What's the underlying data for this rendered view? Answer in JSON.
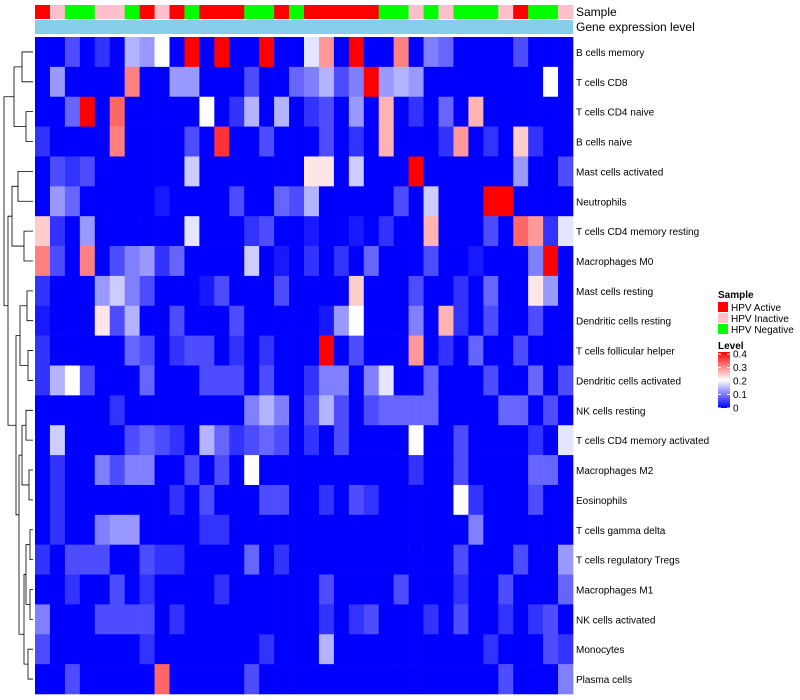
{
  "chart_data": {
    "type": "heatmap",
    "title": "",
    "annotation_rows": {
      "sample_label": "Sample",
      "gene_label": "Gene expression level"
    },
    "sample_groups": [
      "A",
      "I",
      "N",
      "N",
      "I",
      "I",
      "N",
      "A",
      "I",
      "A",
      "N",
      "A",
      "A",
      "A",
      "N",
      "N",
      "A",
      "N",
      "A",
      "A",
      "A",
      "A",
      "A",
      "N",
      "N",
      "I",
      "N",
      "I",
      "N",
      "N",
      "N",
      "I",
      "A",
      "N",
      "N",
      "I"
    ],
    "row_labels": [
      "B cells memory",
      "T cells CD8",
      "T cells CD4 naive",
      "B cells naive",
      "Mast cells activated",
      "Neutrophils",
      "T cells CD4 memory resting",
      "Macrophages M0",
      "Mast cells resting",
      "Dendritic cells resting",
      "T cells follicular helper",
      "Dendritic cells activated",
      "NK cells resting",
      "T cells CD4 memory activated",
      "Macrophages M2",
      "Eosinophils",
      "T cells gamma delta",
      "T cells regulatory  Tregs",
      "Macrophages M1",
      "NK cells activated",
      "Monocytes",
      "Plasma cells"
    ],
    "values": [
      [
        0.0,
        0.0,
        0.06,
        0.0,
        0.04,
        0.0,
        0.14,
        0.12,
        0.2,
        0.0,
        0.4,
        0.0,
        0.4,
        0.0,
        0.0,
        0.4,
        0.0,
        0.0,
        0.18,
        0.28,
        0.0,
        0.4,
        0.0,
        0.0,
        0.3,
        0.0,
        0.1,
        0.08,
        0.0,
        0.0,
        0.0,
        0.0,
        0.06,
        0.0,
        0.0,
        0.0
      ],
      [
        0.0,
        0.12,
        0.0,
        0.0,
        0.0,
        0.0,
        0.3,
        0.0,
        0.0,
        0.12,
        0.12,
        0.0,
        0.0,
        0.0,
        0.06,
        0.0,
        0.0,
        0.08,
        0.1,
        0.14,
        0.06,
        0.1,
        0.4,
        0.12,
        0.14,
        0.12,
        0.0,
        0.0,
        0.0,
        0.0,
        0.0,
        0.0,
        0.0,
        0.0,
        0.2,
        0.0
      ],
      [
        0.0,
        0.0,
        0.08,
        0.4,
        0.0,
        0.32,
        0.0,
        0.0,
        0.0,
        0.0,
        0.0,
        0.2,
        0.0,
        0.04,
        0.14,
        0.0,
        0.14,
        0.0,
        0.04,
        0.06,
        0.0,
        0.12,
        0.0,
        0.26,
        0.0,
        0.04,
        0.0,
        0.08,
        0.0,
        0.26,
        0.0,
        0.0,
        0.0,
        0.0,
        0.0,
        0.0
      ],
      [
        0.04,
        0.0,
        0.0,
        0.0,
        0.0,
        0.3,
        0.0,
        0.0,
        0.0,
        0.0,
        0.06,
        0.0,
        0.36,
        0.0,
        0.0,
        0.06,
        0.0,
        0.0,
        0.0,
        0.06,
        0.0,
        0.04,
        0.0,
        0.26,
        0.0,
        0.0,
        0.0,
        0.04,
        0.28,
        0.0,
        0.04,
        0.0,
        0.24,
        0.04,
        0.0,
        0.0
      ],
      [
        0.0,
        0.06,
        0.04,
        0.06,
        0.0,
        0.0,
        0.0,
        0.0,
        0.0,
        0.0,
        0.16,
        0.0,
        0.0,
        0.0,
        0.0,
        0.0,
        0.0,
        0.0,
        0.22,
        0.22,
        0.0,
        0.16,
        0.0,
        0.0,
        0.0,
        0.4,
        0.0,
        0.0,
        0.0,
        0.0,
        0.0,
        0.0,
        0.12,
        0.0,
        0.0,
        0.06
      ],
      [
        0.0,
        0.12,
        0.08,
        0.0,
        0.0,
        0.0,
        0.0,
        0.0,
        0.02,
        0.0,
        0.0,
        0.0,
        0.0,
        0.06,
        0.0,
        0.0,
        0.08,
        0.06,
        0.14,
        0.0,
        0.0,
        0.0,
        0.0,
        0.0,
        0.06,
        0.0,
        0.16,
        0.0,
        0.0,
        0.0,
        0.4,
        0.4,
        0.0,
        0.0,
        0.0,
        0.0
      ],
      [
        0.24,
        0.04,
        0.0,
        0.12,
        0.0,
        0.0,
        0.0,
        0.0,
        0.0,
        0.0,
        0.18,
        0.0,
        0.0,
        0.0,
        0.04,
        0.06,
        0.0,
        0.0,
        0.02,
        0.0,
        0.0,
        0.02,
        0.0,
        0.04,
        0.0,
        0.0,
        0.26,
        0.0,
        0.0,
        0.0,
        0.06,
        0.0,
        0.32,
        0.28,
        0.04,
        0.18
      ],
      [
        0.3,
        0.06,
        0.0,
        0.3,
        0.0,
        0.06,
        0.1,
        0.12,
        0.04,
        0.08,
        0.0,
        0.0,
        0.0,
        0.0,
        0.16,
        0.0,
        0.02,
        0.0,
        0.04,
        0.0,
        0.04,
        0.0,
        0.08,
        0.0,
        0.0,
        0.0,
        0.06,
        0.0,
        0.0,
        0.02,
        0.0,
        0.0,
        0.0,
        0.1,
        0.4,
        0.0
      ],
      [
        0.04,
        0.0,
        0.0,
        0.0,
        0.12,
        0.16,
        0.1,
        0.06,
        0.0,
        0.0,
        0.0,
        0.02,
        0.06,
        0.0,
        0.0,
        0.0,
        0.06,
        0.0,
        0.0,
        0.0,
        0.0,
        0.24,
        0.0,
        0.0,
        0.0,
        0.06,
        0.0,
        0.0,
        0.04,
        0.0,
        0.08,
        0.0,
        0.0,
        0.22,
        0.12,
        0.0
      ],
      [
        0.02,
        0.0,
        0.0,
        0.0,
        0.22,
        0.06,
        0.14,
        0.0,
        0.0,
        0.06,
        0.0,
        0.0,
        0.0,
        0.06,
        0.0,
        0.0,
        0.0,
        0.0,
        0.0,
        0.02,
        0.12,
        0.2,
        0.0,
        0.0,
        0.0,
        0.1,
        0.0,
        0.26,
        0.04,
        0.0,
        0.06,
        0.0,
        0.0,
        0.06,
        0.0,
        0.0
      ],
      [
        0.04,
        0.0,
        0.0,
        0.0,
        0.0,
        0.0,
        0.08,
        0.06,
        0.0,
        0.04,
        0.06,
        0.06,
        0.0,
        0.04,
        0.0,
        0.04,
        0.0,
        0.0,
        0.0,
        0.4,
        0.0,
        0.06,
        0.0,
        0.0,
        0.0,
        0.28,
        0.0,
        0.04,
        0.0,
        0.08,
        0.0,
        0.0,
        0.06,
        0.0,
        0.0,
        0.0
      ],
      [
        0.04,
        0.14,
        0.2,
        0.06,
        0.0,
        0.0,
        0.0,
        0.08,
        0.0,
        0.0,
        0.0,
        0.06,
        0.06,
        0.06,
        0.0,
        0.06,
        0.0,
        0.0,
        0.04,
        0.1,
        0.1,
        0.0,
        0.1,
        0.18,
        0.0,
        0.0,
        0.08,
        0.0,
        0.0,
        0.0,
        0.06,
        0.0,
        0.0,
        0.08,
        0.0,
        0.06
      ],
      [
        0.0,
        0.0,
        0.0,
        0.0,
        0.0,
        0.04,
        0.0,
        0.0,
        0.0,
        0.0,
        0.0,
        0.0,
        0.0,
        0.0,
        0.1,
        0.14,
        0.1,
        0.0,
        0.06,
        0.14,
        0.06,
        0.0,
        0.06,
        0.08,
        0.08,
        0.08,
        0.08,
        0.0,
        0.0,
        0.0,
        0.0,
        0.08,
        0.08,
        0.0,
        0.06,
        0.0
      ],
      [
        0.0,
        0.16,
        0.0,
        0.0,
        0.0,
        0.0,
        0.06,
        0.08,
        0.06,
        0.04,
        0.0,
        0.14,
        0.08,
        0.04,
        0.06,
        0.08,
        0.06,
        0.0,
        0.04,
        0.0,
        0.06,
        0.0,
        0.0,
        0.0,
        0.0,
        0.2,
        0.0,
        0.0,
        0.06,
        0.0,
        0.0,
        0.0,
        0.0,
        0.04,
        0.0,
        0.18
      ],
      [
        0.0,
        0.04,
        0.0,
        0.0,
        0.1,
        0.06,
        0.1,
        0.1,
        0.0,
        0.0,
        0.06,
        0.0,
        0.06,
        0.0,
        0.2,
        0.0,
        0.0,
        0.0,
        0.0,
        0.0,
        0.0,
        0.0,
        0.0,
        0.0,
        0.0,
        0.04,
        0.0,
        0.0,
        0.06,
        0.0,
        0.0,
        0.0,
        0.0,
        0.08,
        0.08,
        0.0
      ],
      [
        0.0,
        0.04,
        0.0,
        0.0,
        0.0,
        0.0,
        0.0,
        0.0,
        0.0,
        0.04,
        0.0,
        0.06,
        0.0,
        0.0,
        0.0,
        0.06,
        0.06,
        0.0,
        0.0,
        0.04,
        0.0,
        0.06,
        0.04,
        0.0,
        0.0,
        0.0,
        0.0,
        0.0,
        0.2,
        0.04,
        0.0,
        0.0,
        0.0,
        0.06,
        0.0,
        0.0
      ],
      [
        0.0,
        0.04,
        0.0,
        0.0,
        0.1,
        0.12,
        0.12,
        0.0,
        0.0,
        0.0,
        0.0,
        0.04,
        0.04,
        0.0,
        0.0,
        0.0,
        0.0,
        0.0,
        0.0,
        0.0,
        0.0,
        0.0,
        0.0,
        0.0,
        0.0,
        0.0,
        0.0,
        0.0,
        0.0,
        0.1,
        0.0,
        0.0,
        0.0,
        0.0,
        0.0,
        0.0
      ],
      [
        0.04,
        0.0,
        0.06,
        0.06,
        0.06,
        0.0,
        0.0,
        0.06,
        0.04,
        0.04,
        0.0,
        0.0,
        0.0,
        0.0,
        0.08,
        0.0,
        0.04,
        0.0,
        0.0,
        0.0,
        0.0,
        0.0,
        0.0,
        0.0,
        0.0,
        0.0,
        0.0,
        0.0,
        0.06,
        0.0,
        0.0,
        0.0,
        0.06,
        0.0,
        0.0,
        0.12
      ],
      [
        0.0,
        0.0,
        0.04,
        0.0,
        0.0,
        0.06,
        0.0,
        0.04,
        0.0,
        0.0,
        0.0,
        0.0,
        0.04,
        0.0,
        0.0,
        0.0,
        0.0,
        0.0,
        0.0,
        0.06,
        0.0,
        0.0,
        0.0,
        0.0,
        0.06,
        0.0,
        0.0,
        0.0,
        0.04,
        0.0,
        0.0,
        0.06,
        0.0,
        0.0,
        0.0,
        0.08
      ],
      [
        0.1,
        0.0,
        0.0,
        0.0,
        0.06,
        0.06,
        0.06,
        0.06,
        0.0,
        0.04,
        0.0,
        0.0,
        0.0,
        0.0,
        0.0,
        0.0,
        0.0,
        0.0,
        0.0,
        0.04,
        0.0,
        0.04,
        0.06,
        0.0,
        0.0,
        0.0,
        0.04,
        0.0,
        0.06,
        0.0,
        0.0,
        0.04,
        0.0,
        0.04,
        0.06,
        0.0
      ],
      [
        0.06,
        0.0,
        0.0,
        0.0,
        0.0,
        0.0,
        0.0,
        0.04,
        0.0,
        0.0,
        0.0,
        0.0,
        0.0,
        0.0,
        0.0,
        0.04,
        0.0,
        0.0,
        0.0,
        0.14,
        0.0,
        0.0,
        0.0,
        0.0,
        0.0,
        0.0,
        0.0,
        0.0,
        0.0,
        0.0,
        0.04,
        0.0,
        0.0,
        0.0,
        0.06,
        0.04
      ],
      [
        0.0,
        0.0,
        0.06,
        0.0,
        0.0,
        0.0,
        0.0,
        0.0,
        0.32,
        0.0,
        0.0,
        0.0,
        0.0,
        0.0,
        0.06,
        0.0,
        0.0,
        0.0,
        0.0,
        0.0,
        0.0,
        0.0,
        0.0,
        0.0,
        0.0,
        0.0,
        0.0,
        0.0,
        0.0,
        0.0,
        0.0,
        0.06,
        0.0,
        0.0,
        0.0,
        0.1
      ]
    ],
    "color_scale": {
      "low": "#0000ff",
      "mid": "#ffffff",
      "high": "#ff0000",
      "min": 0,
      "mid_value": 0.2,
      "max": 0.4
    },
    "legend": {
      "sample_title": "Sample",
      "sample_entries": [
        {
          "key": "A",
          "label": "HPV Active",
          "color": "#ff0000"
        },
        {
          "key": "I",
          "label": "HPV Inactive",
          "color": "#ffc0cb"
        },
        {
          "key": "N",
          "label": "HPV Negative",
          "color": "#00ff00"
        }
      ],
      "level_title": "Level",
      "level_ticks": [
        "0.4",
        "0.3",
        "0.2",
        "0.1",
        "0"
      ],
      "placement": "right"
    },
    "gene_bar_color": "#87ceeb",
    "dendrogram": "rows clustered (left side)"
  }
}
